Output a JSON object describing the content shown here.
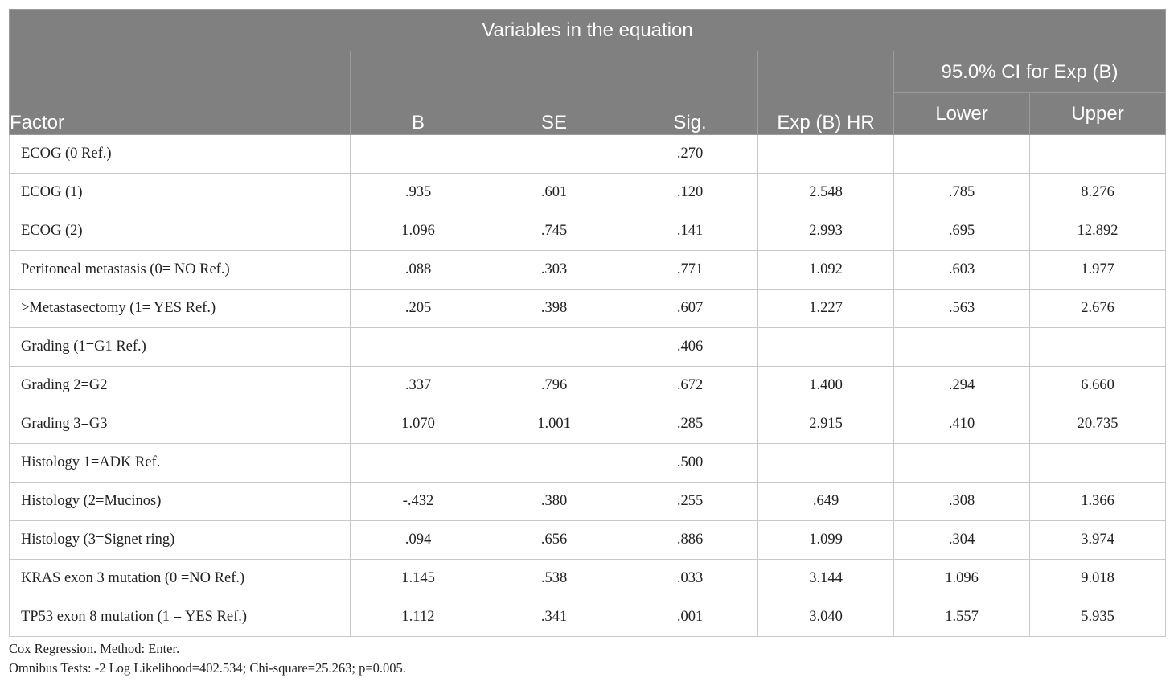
{
  "table": {
    "title": "Variables in the equation",
    "headers": {
      "factor": "Factor",
      "b": "B",
      "se": "SE",
      "sig": "Sig.",
      "exp_b_hr": "Exp (B) HR",
      "ci_group": "95.0% CI for Exp (B)",
      "lower": "Lower",
      "upper": "Upper"
    },
    "rows": [
      {
        "factor": "ECOG (0 Ref.)",
        "b": "",
        "se": "",
        "sig": ".270",
        "exp": "",
        "lower": "",
        "upper": ""
      },
      {
        "factor": "ECOG (1)",
        "b": ".935",
        "se": ".601",
        "sig": ".120",
        "exp": "2.548",
        "lower": ".785",
        "upper": "8.276"
      },
      {
        "factor": "ECOG (2)",
        "b": "1.096",
        "se": ".745",
        "sig": ".141",
        "exp": "2.993",
        "lower": ".695",
        "upper": "12.892"
      },
      {
        "factor": "Peritoneal metastasis (0= NO Ref.)",
        "b": ".088",
        "se": ".303",
        "sig": ".771",
        "exp": "1.092",
        "lower": ".603",
        "upper": "1.977"
      },
      {
        "factor": ">Metastasectomy (1= YES Ref.)",
        "b": ".205",
        "se": ".398",
        "sig": ".607",
        "exp": "1.227",
        "lower": ".563",
        "upper": "2.676"
      },
      {
        "factor": "Grading (1=G1 Ref.)",
        "b": "",
        "se": "",
        "sig": ".406",
        "exp": "",
        "lower": "",
        "upper": ""
      },
      {
        "factor": "Grading 2=G2",
        "b": ".337",
        "se": ".796",
        "sig": ".672",
        "exp": "1.400",
        "lower": ".294",
        "upper": "6.660"
      },
      {
        "factor": "Grading 3=G3",
        "b": "1.070",
        "se": "1.001",
        "sig": ".285",
        "exp": "2.915",
        "lower": ".410",
        "upper": "20.735"
      },
      {
        "factor": "Histology 1=ADK Ref.",
        "b": "",
        "se": "",
        "sig": ".500",
        "exp": "",
        "lower": "",
        "upper": ""
      },
      {
        "factor": "Histology (2=Mucinos)",
        "b": "-.432",
        "se": ".380",
        "sig": ".255",
        "exp": ".649",
        "lower": ".308",
        "upper": "1.366"
      },
      {
        "factor": "Histology (3=Signet ring)",
        "b": ".094",
        "se": ".656",
        "sig": ".886",
        "exp": "1.099",
        "lower": ".304",
        "upper": "3.974"
      },
      {
        "factor": "KRAS exon 3 mutation (0 =NO Ref.)",
        "b": "1.145",
        "se": ".538",
        "sig": ".033",
        "exp": "3.144",
        "lower": "1.096",
        "upper": "9.018"
      },
      {
        "factor": "TP53 exon 8 mutation (1 = YES Ref.)",
        "b": "1.112",
        "se": ".341",
        "sig": ".001",
        "exp": "3.040",
        "lower": "1.557",
        "upper": "5.935"
      }
    ]
  },
  "notes": {
    "line1": "Cox Regression. Method: Enter.",
    "line2": "Omnibus Tests: -2 Log Likelihood=402.534; Chi-square=25.263; p=0.005."
  },
  "colors": {
    "header_bg": "#808080",
    "header_text": "#ffffff",
    "cell_border": "#c8c8c8"
  }
}
